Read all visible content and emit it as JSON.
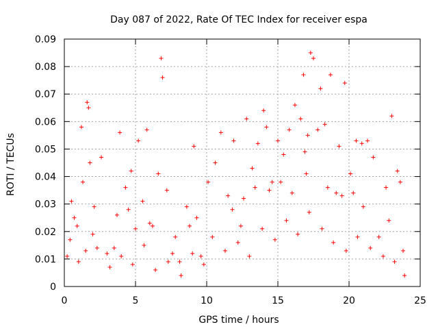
{
  "chart_data": {
    "type": "scatter",
    "title": "Day 087 of 2022, Rate Of TEC Index for receiver espa",
    "xlabel": "GPS time / hours",
    "ylabel": "ROTI / TECUs",
    "xlim": [
      0,
      25
    ],
    "ylim": [
      0,
      0.09
    ],
    "x_ticks": [
      0,
      5,
      10,
      15,
      20,
      25
    ],
    "x_tick_labels": [
      "0",
      "5",
      "10",
      "15",
      "20",
      "25"
    ],
    "y_ticks": [
      0,
      0.01,
      0.02,
      0.03,
      0.04,
      0.05,
      0.06,
      0.07,
      0.08,
      0.09
    ],
    "y_tick_labels": [
      "0",
      "0.01",
      "0.02",
      "0.03",
      "0.04",
      "0.05",
      "0.06",
      "0.07",
      "0.08",
      "0.09"
    ],
    "grid": true,
    "marker": "+",
    "marker_color": "#ff0000",
    "series": [
      {
        "name": "ROTI",
        "x": [
          0.2,
          0.5,
          0.9,
          1.2,
          1.6,
          1.7,
          1.8,
          2.1,
          2.6,
          3.0,
          3.5,
          3.9,
          4.3,
          4.7,
          5.2,
          5.5,
          5.8,
          6.2,
          6.6,
          6.8,
          6.9,
          7.2,
          7.6,
          8.1,
          8.6,
          9.1,
          9.6,
          10.1,
          10.6,
          11.0,
          11.5,
          11.9,
          12.4,
          12.8,
          13.2,
          13.6,
          14.0,
          14.2,
          14.6,
          15.0,
          15.4,
          15.8,
          16.2,
          16.6,
          16.8,
          17.1,
          17.3,
          17.5,
          17.8,
          18.0,
          18.3,
          18.7,
          19.1,
          19.3,
          19.7,
          20.1,
          20.5,
          20.9,
          21.3,
          21.7,
          22.1,
          22.6,
          23.0,
          23.4,
          23.8,
          0.4,
          1.0,
          1.5,
          2.3,
          3.2,
          4.0,
          4.8,
          5.6,
          6.4,
          7.3,
          8.2,
          9.0,
          9.8,
          10.4,
          11.3,
          12.2,
          13.0,
          13.9,
          14.8,
          15.6,
          16.4,
          17.2,
          18.1,
          18.9,
          19.8,
          20.6,
          21.5,
          22.4,
          23.2,
          23.9,
          0.7,
          2.0,
          3.7,
          5.0,
          6.0,
          7.8,
          9.3,
          11.8,
          12.6,
          14.4,
          15.2,
          16.0,
          17.0,
          18.5,
          19.5,
          21.0,
          22.8,
          1.3,
          4.5,
          8.8,
          13.4,
          16.9,
          20.3,
          23.6
        ],
        "y": [
          0.011,
          0.031,
          0.022,
          0.058,
          0.067,
          0.065,
          0.045,
          0.029,
          0.047,
          0.012,
          0.014,
          0.056,
          0.036,
          0.042,
          0.053,
          0.031,
          0.057,
          0.022,
          0.041,
          0.083,
          0.076,
          0.035,
          0.012,
          0.009,
          0.029,
          0.051,
          0.011,
          0.038,
          0.045,
          0.056,
          0.033,
          0.053,
          0.022,
          0.061,
          0.043,
          0.052,
          0.064,
          0.058,
          0.038,
          0.053,
          0.048,
          0.057,
          0.066,
          0.061,
          0.077,
          0.055,
          0.085,
          0.083,
          0.057,
          0.072,
          0.059,
          0.077,
          0.034,
          0.051,
          0.074,
          0.041,
          0.053,
          0.052,
          0.053,
          0.047,
          0.018,
          0.036,
          0.062,
          0.042,
          0.013,
          0.017,
          0.009,
          0.013,
          0.014,
          0.007,
          0.011,
          0.008,
          0.015,
          0.006,
          0.009,
          0.004,
          0.012,
          0.008,
          0.018,
          0.013,
          0.016,
          0.011,
          0.021,
          0.017,
          0.024,
          0.019,
          0.027,
          0.021,
          0.016,
          0.013,
          0.018,
          0.014,
          0.011,
          0.009,
          0.004,
          0.025,
          0.019,
          0.026,
          0.021,
          0.023,
          0.018,
          0.025,
          0.028,
          0.032,
          0.035,
          0.038,
          0.034,
          0.041,
          0.036,
          0.033,
          0.029,
          0.024,
          0.038,
          0.028,
          0.022,
          0.036,
          0.049,
          0.034,
          0.038
        ]
      }
    ]
  }
}
